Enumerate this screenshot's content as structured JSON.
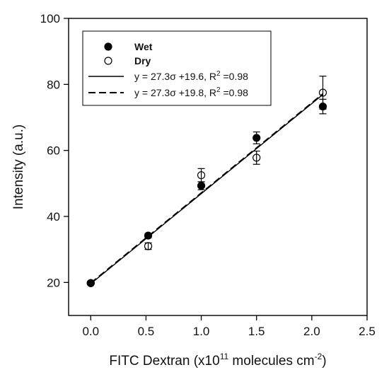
{
  "chart_data": {
    "type": "scatter",
    "xlabel_main": "FITC Dextran (x10",
    "xlabel_exp": "11",
    "xlabel_unit": " molecules cm",
    "xlabel_unit_exp": "-2",
    "xlabel_close": ")",
    "ylabel": "Intensity (a.u.)",
    "xlim": [
      -0.2,
      2.5
    ],
    "ylim": [
      10,
      100
    ],
    "xticks": [
      "0.0",
      "0.5",
      "1.0",
      "1.5",
      "2.0",
      "2.5"
    ],
    "xtick_values": [
      0,
      0.5,
      1.0,
      1.5,
      2.0,
      2.5
    ],
    "yticks": [
      "20",
      "40",
      "60",
      "80",
      "100"
    ],
    "ytick_values": [
      20,
      40,
      60,
      80,
      100
    ],
    "series": [
      {
        "name": "Wet",
        "marker": "filled-circle",
        "points": [
          {
            "x": 0.0,
            "y": 19.8,
            "err": 0.0
          },
          {
            "x": 0.52,
            "y": 34.2,
            "err": 0.6
          },
          {
            "x": 1.0,
            "y": 49.3,
            "err": 1.2
          },
          {
            "x": 1.5,
            "y": 63.8,
            "err": 1.8
          },
          {
            "x": 2.1,
            "y": 73.3,
            "err": 2.2
          }
        ]
      },
      {
        "name": "Dry",
        "marker": "open-circle",
        "points": [
          {
            "x": 0.0,
            "y": 19.8,
            "err": 0.0
          },
          {
            "x": 0.52,
            "y": 31.0,
            "err": 1.0
          },
          {
            "x": 1.0,
            "y": 52.5,
            "err": 2.0
          },
          {
            "x": 1.5,
            "y": 57.8,
            "err": 2.0
          },
          {
            "x": 2.1,
            "y": 77.5,
            "err": 5.0
          }
        ]
      }
    ],
    "fits": [
      {
        "style": "solid",
        "slope": 27.3,
        "intercept": 19.6,
        "x_range": [
          0,
          2.1
        ],
        "label_prefix": "y = 27.3σ +19.6, R",
        "label_exp": "2",
        "label_suffix": " =0.98"
      },
      {
        "style": "dashed",
        "slope": 27.3,
        "intercept": 19.8,
        "x_range": [
          0,
          2.1
        ],
        "label_prefix": "y = 27.3σ +19.8, R",
        "label_exp": "2",
        "label_suffix": " =0.98"
      }
    ],
    "legend": {
      "position": "top-left",
      "entries": [
        "Wet",
        "Dry"
      ]
    },
    "grid": false
  }
}
